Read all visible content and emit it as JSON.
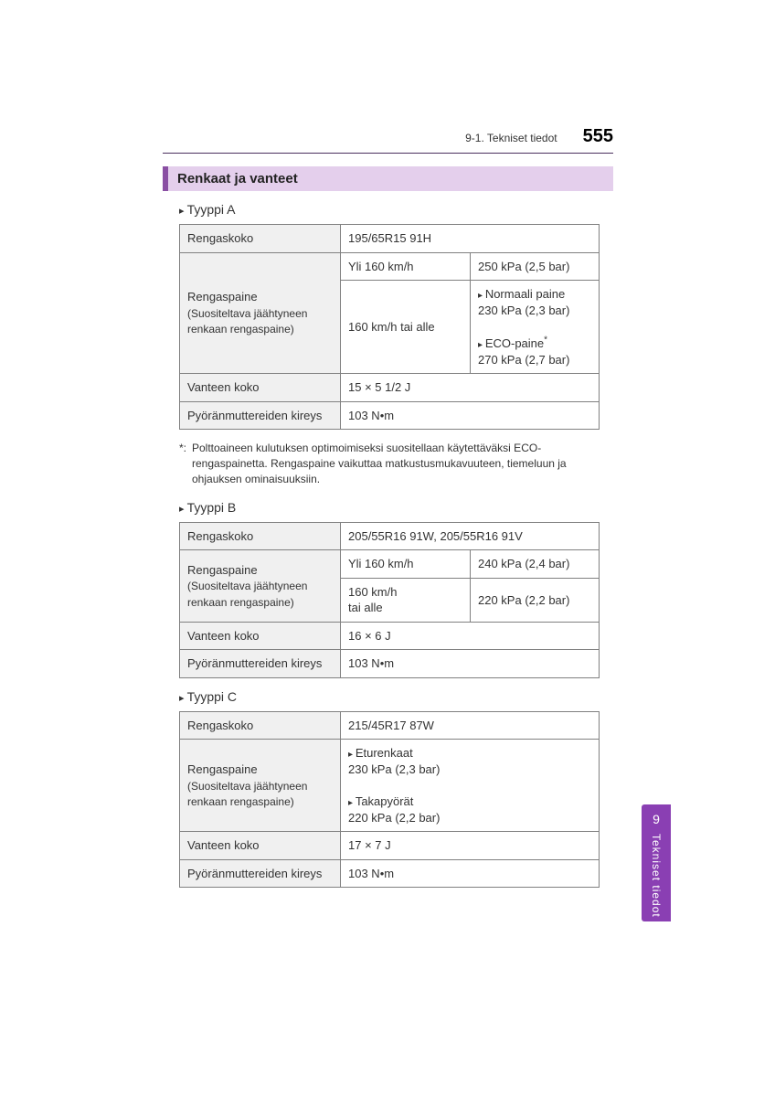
{
  "header": {
    "section": "9-1. Tekniset tiedot",
    "page_number": "555"
  },
  "section_heading": "Renkaat ja vanteet",
  "type_a": {
    "label": "Tyyppi A",
    "row1_label": "Rengaskoko",
    "row1_value": "195/65R15 91H",
    "pressure_label": "Rengaspaine",
    "pressure_sub": "(Suositeltava jäähtyneen renkaan rengaspaine)",
    "over160_label": "Yli 160  km/h",
    "over160_value": "250 kPa (2,5 bar)",
    "under160_label": "160 km/h tai alle",
    "normal_label": "Normaali paine",
    "normal_value": "230 kPa (2,3 bar)",
    "eco_label": "ECO-paine",
    "eco_value": "270 kPa (2,7 bar)",
    "wheel_label": "Vanteen koko",
    "wheel_value": "15 × 5 1/2 J",
    "torque_label": "Pyöränmuttereiden kireys",
    "torque_value": "103 N•m"
  },
  "footnote": {
    "mark": "*:",
    "text": "Polttoaineen kulutuksen optimoimiseksi suositellaan käytettäväksi ECO-rengaspainetta. Rengaspaine vaikuttaa matkustusmukavuuteen, tiemeluun ja ohjauksen ominaisuuksiin."
  },
  "type_b": {
    "label": "Tyyppi B",
    "row1_label": "Rengaskoko",
    "row1_value": "205/55R16 91W, 205/55R16 91V",
    "pressure_label": "Rengaspaine",
    "pressure_sub": "(Suositeltava jäähtyneen renkaan rengaspaine)",
    "over160_label": "Yli 160  km/h",
    "over160_value": "240 kPa (2,4 bar)",
    "under160_label_l1": "160 km/h",
    "under160_label_l2": "tai alle",
    "under160_value": "220 kPa (2,2 bar)",
    "wheel_label": "Vanteen koko",
    "wheel_value": "16 × 6 J",
    "torque_label": "Pyöränmuttereiden kireys",
    "torque_value": "103 N•m"
  },
  "type_c": {
    "label": "Tyyppi C",
    "row1_label": "Rengaskoko",
    "row1_value": "215/45R17 87W",
    "pressure_label": "Rengaspaine",
    "pressure_sub": "(Suositeltava jäähtyneen renkaan rengaspaine)",
    "front_label": "Eturenkaat",
    "front_value": "230 kPa (2,3 bar)",
    "rear_label": "Takapyörät",
    "rear_value": "220 kPa (2,2 bar)",
    "wheel_label": "Vanteen koko",
    "wheel_value": "17 × 7 J",
    "torque_label": "Pyöränmuttereiden kireys",
    "torque_value": "103 N•m"
  },
  "side_tab": {
    "number": "9",
    "text": "Tekniset tiedot"
  },
  "colors": {
    "heading_bg": "#e4cfec",
    "heading_accent": "#8a4fa3",
    "tab_bg": "#8a3fb3",
    "rule": "#4a2f5e",
    "cell_border": "#808080",
    "label_bg": "#f0f0f0"
  }
}
